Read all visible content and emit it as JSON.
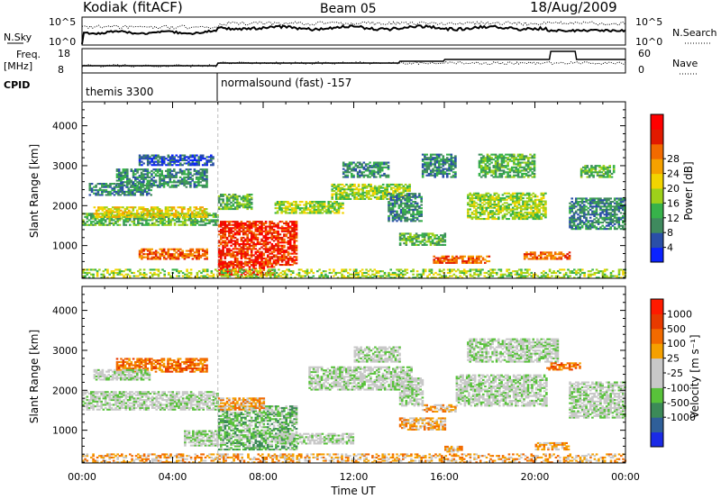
{
  "header": {
    "station": "Kodiak (fitACF)",
    "beam": "Beam 05",
    "date": "18/Aug/2009"
  },
  "summary": {
    "left_top_label": "N.Sky",
    "left_scale_hi": "10^5",
    "left_scale_lo": "10^0",
    "right_top_label": "N.Search",
    "right_scale_hi": "10^5",
    "right_scale_lo": "10^0",
    "left_mid_label_1": "Freq.",
    "left_mid_label_2": "[MHz]",
    "freq_hi": "18",
    "freq_lo": "8",
    "right_mid_label": "Nave",
    "nave_hi": "60",
    "nave_lo": "0",
    "cpid_label": "CPID",
    "cpid_segments": [
      {
        "label": "themis 3300",
        "start": 0,
        "end": 6
      },
      {
        "label": "normalsound (fast) -157",
        "start": 6,
        "end": 24
      }
    ]
  },
  "chart_data": [
    {
      "type": "heatmap",
      "name": "power",
      "ylabel": "Slant Range [km]",
      "ylim": [
        180,
        4600
      ],
      "yticks": [
        1000,
        2000,
        3000,
        4000
      ],
      "xlim": [
        0,
        24
      ],
      "xticks": [
        "00:00",
        "04:00",
        "08:00",
        "12:00",
        "16:00",
        "20:00",
        "00:00"
      ],
      "colorbar_label": "Power [dB]",
      "colorbar_ticks": [
        "4",
        "8",
        "12",
        "16",
        "20",
        "24",
        "28"
      ],
      "colorbar_colors": [
        "#0a22ff",
        "#2a4fa8",
        "#3f8a5e",
        "#37b24a",
        "#9ed11a",
        "#f2d400",
        "#f5a100",
        "#f26a00",
        "#e11a00",
        "#ff0000"
      ],
      "echo_regions": [
        {
          "t0": 0.0,
          "t1": 6.0,
          "r0": 1500,
          "r1": 1800,
          "level": 3
        },
        {
          "t0": 0.5,
          "t1": 5.5,
          "r0": 1700,
          "r1": 1950,
          "level": 5
        },
        {
          "t0": 0.3,
          "t1": 3.0,
          "r0": 2250,
          "r1": 2550,
          "level": 2
        },
        {
          "t0": 1.5,
          "t1": 5.5,
          "r0": 2450,
          "r1": 2900,
          "level": 2
        },
        {
          "t0": 2.5,
          "t1": 5.8,
          "r0": 3000,
          "r1": 3250,
          "level": 1
        },
        {
          "t0": 2.5,
          "t1": 5.5,
          "r0": 650,
          "r1": 900,
          "level": 7
        },
        {
          "t0": 6.0,
          "t1": 9.5,
          "r0": 500,
          "r1": 1600,
          "level": 8
        },
        {
          "t0": 6.0,
          "t1": 8.5,
          "r0": 250,
          "r1": 600,
          "level": 8
        },
        {
          "t0": 6.0,
          "t1": 7.5,
          "r0": 1900,
          "r1": 2300,
          "level": 3
        },
        {
          "t0": 8.5,
          "t1": 11.5,
          "r0": 1800,
          "r1": 2100,
          "level": 4
        },
        {
          "t0": 11.0,
          "t1": 14.5,
          "r0": 2150,
          "r1": 2550,
          "level": 4
        },
        {
          "t0": 11.5,
          "t1": 13.5,
          "r0": 2700,
          "r1": 3100,
          "level": 2
        },
        {
          "t0": 13.5,
          "t1": 15.0,
          "r0": 1600,
          "r1": 2300,
          "level": 2
        },
        {
          "t0": 15.0,
          "t1": 16.5,
          "r0": 2700,
          "r1": 3300,
          "level": 2
        },
        {
          "t0": 14.0,
          "t1": 16.0,
          "r0": 1000,
          "r1": 1300,
          "level": 3
        },
        {
          "t0": 15.5,
          "t1": 18.0,
          "r0": 550,
          "r1": 750,
          "level": 7
        },
        {
          "t0": 17.0,
          "t1": 20.5,
          "r0": 1650,
          "r1": 2300,
          "level": 4
        },
        {
          "t0": 17.5,
          "t1": 20.0,
          "r0": 2700,
          "r1": 3300,
          "level": 3
        },
        {
          "t0": 19.5,
          "t1": 21.5,
          "r0": 650,
          "r1": 850,
          "level": 7
        },
        {
          "t0": 21.5,
          "t1": 24.0,
          "r0": 1400,
          "r1": 2200,
          "level": 2
        },
        {
          "t0": 22.0,
          "t1": 23.5,
          "r0": 2700,
          "r1": 3000,
          "level": 3
        },
        {
          "t0": 0.0,
          "t1": 24.0,
          "r0": 180,
          "r1": 400,
          "level": 4
        }
      ]
    },
    {
      "type": "heatmap",
      "name": "velocity",
      "ylabel": "Slant Range [km]",
      "ylim": [
        180,
        4600
      ],
      "yticks": [
        1000,
        2000,
        3000,
        4000
      ],
      "xlim": [
        0,
        24
      ],
      "xticks": [
        "00:00",
        "04:00",
        "08:00",
        "12:00",
        "16:00",
        "20:00",
        "00:00"
      ],
      "xlabel": "Time UT",
      "colorbar_label": "Velocity [m s⁻¹]",
      "colorbar_ticks": [
        "1000",
        "500",
        "100",
        "25",
        "-25",
        "-100",
        "-500",
        "-1000"
      ],
      "colorbar_colors": [
        "#1a2ae6",
        "#2f5f99",
        "#3c8a58",
        "#58c23a",
        "#c8c8c8",
        "#c8c8c8",
        "#f5a000",
        "#f26a00",
        "#e83a00",
        "#ff1a00"
      ],
      "echo_regions": [
        {
          "t0": 0.0,
          "t1": 6.0,
          "r0": 1500,
          "r1": 1950,
          "level": 4
        },
        {
          "t0": 1.5,
          "t1": 5.5,
          "r0": 2450,
          "r1": 2800,
          "level": 7
        },
        {
          "t0": 0.5,
          "t1": 3.0,
          "r0": 2250,
          "r1": 2500,
          "level": 4
        },
        {
          "t0": 4.5,
          "t1": 6.0,
          "r0": 600,
          "r1": 1000,
          "level": 4
        },
        {
          "t0": 6.0,
          "t1": 9.5,
          "r0": 500,
          "r1": 1600,
          "level": 3
        },
        {
          "t0": 6.0,
          "t1": 8.0,
          "r0": 1500,
          "r1": 1800,
          "level": 6
        },
        {
          "t0": 8.5,
          "t1": 12.0,
          "r0": 650,
          "r1": 900,
          "level": 4
        },
        {
          "t0": 10.0,
          "t1": 14.5,
          "r0": 2000,
          "r1": 2600,
          "level": 4
        },
        {
          "t0": 12.0,
          "t1": 14.0,
          "r0": 2700,
          "r1": 3100,
          "level": 4
        },
        {
          "t0": 14.0,
          "t1": 16.0,
          "r0": 1000,
          "r1": 1300,
          "level": 6
        },
        {
          "t0": 15.0,
          "t1": 16.5,
          "r0": 1450,
          "r1": 1650,
          "level": 6
        },
        {
          "t0": 14.0,
          "t1": 15.0,
          "r0": 1600,
          "r1": 2300,
          "level": 4
        },
        {
          "t0": 16.5,
          "t1": 20.5,
          "r0": 1600,
          "r1": 2400,
          "level": 4
        },
        {
          "t0": 17.0,
          "t1": 21.0,
          "r0": 2700,
          "r1": 3300,
          "level": 4
        },
        {
          "t0": 20.5,
          "t1": 22.0,
          "r0": 2500,
          "r1": 2700,
          "level": 7
        },
        {
          "t0": 16.0,
          "t1": 16.8,
          "r0": 450,
          "r1": 600,
          "level": 6
        },
        {
          "t0": 20.0,
          "t1": 21.5,
          "r0": 500,
          "r1": 700,
          "level": 6
        },
        {
          "t0": 21.5,
          "t1": 24.0,
          "r0": 1300,
          "r1": 2200,
          "level": 4
        },
        {
          "t0": 0.0,
          "t1": 24.0,
          "r0": 180,
          "r1": 400,
          "level": 6
        }
      ]
    }
  ]
}
